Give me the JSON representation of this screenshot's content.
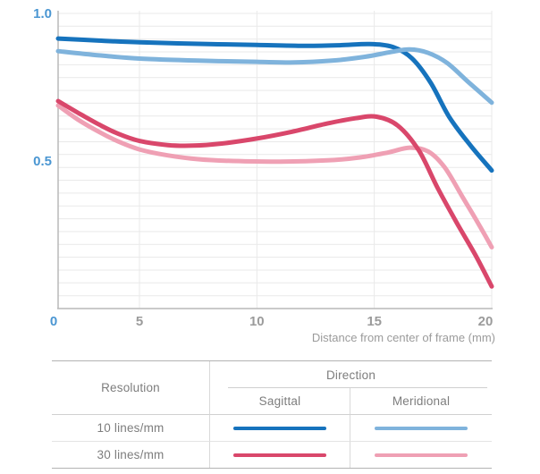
{
  "chart_data": {
    "type": "line",
    "title": "",
    "xlabel": "Distance from center of frame (mm)",
    "ylabel": "",
    "x_range": [
      0,
      20
    ],
    "y_range": [
      0,
      1.0
    ],
    "grid": true,
    "legend_position": "bottom-table",
    "x_ticks": [
      {
        "value": 0,
        "label": "0",
        "emphasis": true
      },
      {
        "value": 5,
        "label": "5",
        "emphasis": false
      },
      {
        "value": 10,
        "label": "10",
        "emphasis": false
      },
      {
        "value": 15,
        "label": "15",
        "emphasis": false
      },
      {
        "value": 20,
        "label": "20",
        "emphasis": false
      }
    ],
    "y_ticks": [
      {
        "value": 1.0,
        "label": "1.0"
      },
      {
        "value": 0.5,
        "label": "0.5"
      }
    ],
    "series": [
      {
        "name": "10 lines/mm Sagittal",
        "color": "#1673bd",
        "points": [
          [
            0,
            0.915
          ],
          [
            2.5,
            0.908
          ],
          [
            5,
            0.902
          ],
          [
            7.5,
            0.897
          ],
          [
            10,
            0.893
          ],
          [
            12,
            0.89
          ],
          [
            13.5,
            0.892
          ],
          [
            14.8,
            0.896
          ],
          [
            15.8,
            0.886
          ],
          [
            16.6,
            0.848
          ],
          [
            17.4,
            0.765
          ],
          [
            18.2,
            0.648
          ],
          [
            19.1,
            0.552
          ],
          [
            20,
            0.468
          ]
        ]
      },
      {
        "name": "10 lines/mm Meridional",
        "color": "#7fb3dc",
        "points": [
          [
            0,
            0.872
          ],
          [
            2.5,
            0.858
          ],
          [
            5,
            0.847
          ],
          [
            7.5,
            0.84
          ],
          [
            10,
            0.836
          ],
          [
            11.6,
            0.834
          ],
          [
            13.2,
            0.84
          ],
          [
            14.6,
            0.853
          ],
          [
            15.7,
            0.869
          ],
          [
            16.5,
            0.878
          ],
          [
            17.3,
            0.866
          ],
          [
            18.1,
            0.832
          ],
          [
            19,
            0.768
          ],
          [
            20,
            0.698
          ]
        ]
      },
      {
        "name": "30 lines/mm Sagittal",
        "color": "#d9476b",
        "points": [
          [
            0,
            0.703
          ],
          [
            1.2,
            0.664
          ],
          [
            2.5,
            0.624
          ],
          [
            3.7,
            0.592
          ],
          [
            5,
            0.568
          ],
          [
            6.2,
            0.554
          ],
          [
            7.3,
            0.552
          ],
          [
            8.5,
            0.559
          ],
          [
            10,
            0.576
          ],
          [
            11.5,
            0.599
          ],
          [
            13,
            0.627
          ],
          [
            14.2,
            0.645
          ],
          [
            15.1,
            0.65
          ],
          [
            16,
            0.62
          ],
          [
            16.9,
            0.535
          ],
          [
            17.7,
            0.408
          ],
          [
            18.5,
            0.292
          ],
          [
            19.3,
            0.182
          ],
          [
            20,
            0.075
          ]
        ]
      },
      {
        "name": "30 lines/mm Meridional",
        "color": "#efa0b4",
        "points": [
          [
            0,
            0.688
          ],
          [
            1.2,
            0.641
          ],
          [
            2.5,
            0.599
          ],
          [
            3.7,
            0.566
          ],
          [
            5,
            0.539
          ],
          [
            6.2,
            0.519
          ],
          [
            7.5,
            0.506
          ],
          [
            9,
            0.5
          ],
          [
            11,
            0.498
          ],
          [
            13,
            0.502
          ],
          [
            14.4,
            0.512
          ],
          [
            15.6,
            0.529
          ],
          [
            16.5,
            0.545
          ],
          [
            17.3,
            0.532
          ],
          [
            18,
            0.478
          ],
          [
            18.8,
            0.372
          ],
          [
            19.4,
            0.292
          ],
          [
            20,
            0.208
          ]
        ]
      }
    ]
  },
  "legend_table": {
    "resolution_header": "Resolution",
    "direction_header": "Direction",
    "columns": [
      "Sagittal",
      "Meridional"
    ],
    "rows": [
      {
        "resolution": "10 lines/mm",
        "sagittal_color": "#1673bd",
        "meridional_color": "#7fb3dc"
      },
      {
        "resolution": "30 lines/mm",
        "sagittal_color": "#d9476b",
        "meridional_color": "#efa0b4"
      }
    ]
  },
  "colors": {
    "axis_label_blue": "#4a96d2",
    "tick_gray": "#9b9b9b",
    "grid_line": "#e9e9e9",
    "axis_line": "#b9b9b9",
    "caption_gray": "#9b9b9b"
  }
}
